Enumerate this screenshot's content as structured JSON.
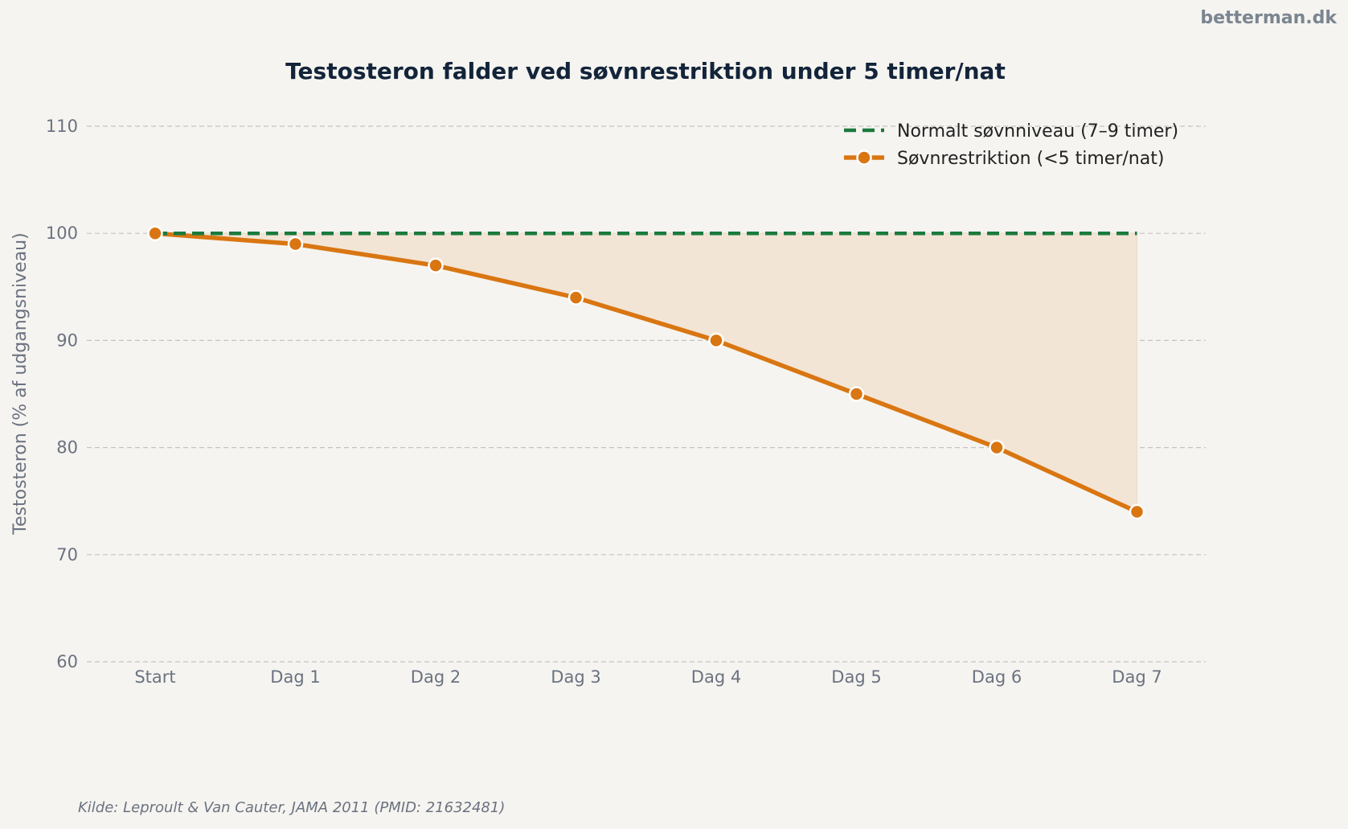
{
  "watermark": "betterman.dk",
  "source": "Kilde: Leproult & Van Cauter, JAMA 2011 (PMID: 21632481)",
  "chart_data": {
    "type": "line",
    "title": "Testosteron falder ved søvnrestriktion under 5 timer/nat",
    "xlabel": "",
    "ylabel": "Testosteron (% af udgangsniveau)",
    "categories": [
      "Start",
      "Dag 1",
      "Dag 2",
      "Dag 3",
      "Dag 4",
      "Dag 5",
      "Dag 6",
      "Dag 7"
    ],
    "ylim": [
      60,
      110
    ],
    "yticks": [
      60,
      70,
      80,
      90,
      100,
      110
    ],
    "grid": true,
    "legend_position": "top-right",
    "series": [
      {
        "name": "Normalt søvnniveau (7–9 timer)",
        "values": [
          100,
          100,
          100,
          100,
          100,
          100,
          100,
          100
        ],
        "color": "#1a7a3c",
        "style": "dashed"
      },
      {
        "name": "Søvnrestriktion (<5 timer/nat)",
        "values": [
          100,
          99,
          97,
          94,
          90,
          85,
          80,
          74
        ],
        "color": "#d97612",
        "style": "solid-markers"
      }
    ],
    "fill_between": {
      "color": "#f2e5d6"
    }
  }
}
